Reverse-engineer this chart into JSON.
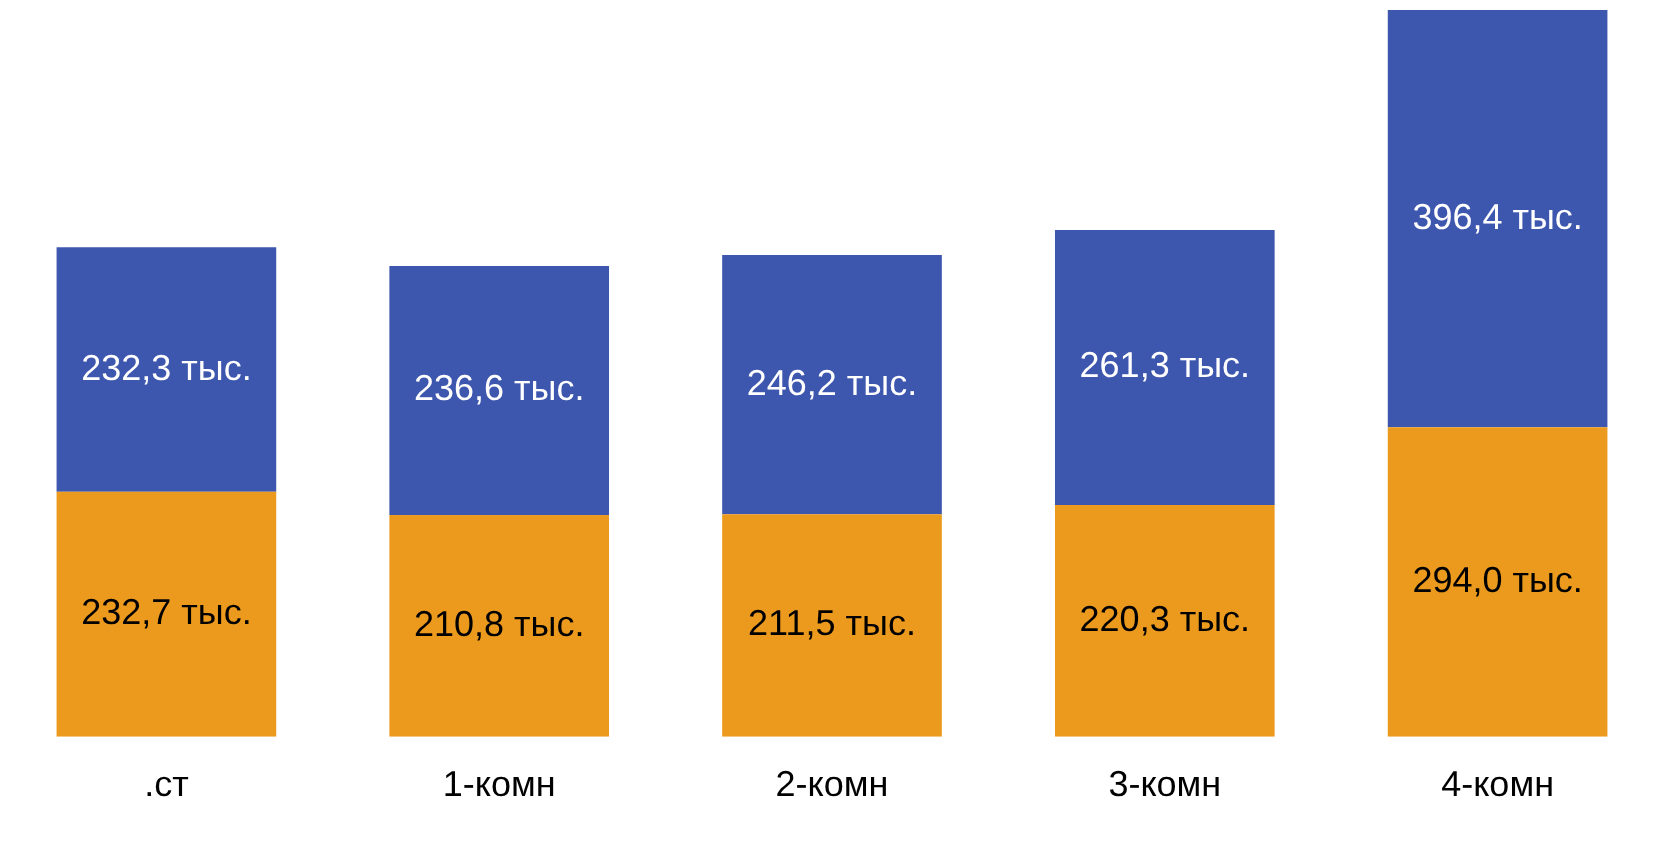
{
  "chart_data": {
    "type": "bar",
    "stacked": true,
    "categories": [
      ".ст",
      "1-комн",
      "2-комн",
      "3-комн",
      "4-комн"
    ],
    "series": [
      {
        "color": "#eb9a1d",
        "values": [
          232.7,
          210.8,
          211.5,
          220.3,
          294.0
        ],
        "value_labels": [
          "232,7 тыс.",
          "210,8 тыс.",
          "211,5 тыс.",
          "220,3 тыс.",
          "294,0 тыс."
        ]
      },
      {
        "color": "#3d56ae",
        "values": [
          232.3,
          236.6,
          246.2,
          261.3,
          396.4
        ],
        "value_labels": [
          "232,3 тыс.",
          "236,6 тыс.",
          "246,2 тыс.",
          "261,3 тыс.",
          "396,4 тыс."
        ]
      }
    ],
    "tick_labels": "x",
    "grid": false,
    "legend": false
  }
}
